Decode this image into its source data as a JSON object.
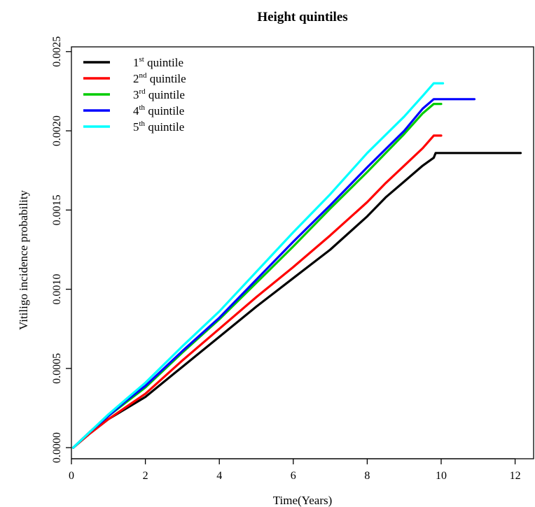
{
  "chart_data": {
    "type": "line",
    "title": "Height quintiles",
    "xlabel": "Time(Years)",
    "ylabel": "Vitiligo incidence probability",
    "xlim": [
      0,
      12.5
    ],
    "ylim": [
      -7e-05,
      0.00253
    ],
    "xticks": [
      0,
      2,
      4,
      6,
      8,
      10,
      12
    ],
    "xtick_labels": [
      "0",
      "2",
      "4",
      "6",
      "8",
      "10",
      "12"
    ],
    "yticks": [
      0.0,
      0.0005,
      0.001,
      0.0015,
      0.002,
      0.0025
    ],
    "ytick_labels": [
      "0.0000",
      "0.0005",
      "0.0010",
      "0.0015",
      "0.0020",
      "0.0025"
    ],
    "grid": false,
    "legend_position": "top-left",
    "series": [
      {
        "name_prefix": "1",
        "name_sup": "st",
        "name_suffix": " quintile",
        "color": "#000000",
        "x": [
          0.05,
          0.5,
          1,
          1.5,
          2,
          3,
          4,
          5,
          5.5,
          6,
          7,
          8,
          8.5,
          9,
          9.5,
          9.8,
          9.85,
          10,
          11,
          12.15
        ],
        "y": [
          0,
          9e-05,
          0.00018,
          0.00025,
          0.00032,
          0.00051,
          0.0007,
          0.00089,
          0.00098,
          0.00107,
          0.00125,
          0.00146,
          0.00158,
          0.00168,
          0.00178,
          0.00183,
          0.00186,
          0.00186,
          0.00186,
          0.00186
        ]
      },
      {
        "name_prefix": "2",
        "name_sup": "nd",
        "name_suffix": " quintile",
        "color": "#ff0000",
        "x": [
          0.05,
          0.5,
          1,
          1.5,
          2,
          3,
          4,
          5,
          6,
          7,
          8,
          8.5,
          9,
          9.5,
          9.8,
          10
        ],
        "y": [
          0,
          9e-05,
          0.00018,
          0.00026,
          0.00034,
          0.00055,
          0.00075,
          0.00095,
          0.00114,
          0.00134,
          0.00155,
          0.00167,
          0.00178,
          0.00189,
          0.00197,
          0.00197
        ]
      },
      {
        "name_prefix": "3",
        "name_sup": "rd",
        "name_suffix": " quintile",
        "color": "#00cc00",
        "x": [
          0.05,
          0.5,
          1,
          1.5,
          2,
          3,
          4,
          5,
          6,
          7,
          8,
          9,
          9.5,
          9.8,
          10
        ],
        "y": [
          0,
          0.0001,
          0.0002,
          0.00029,
          0.00038,
          0.0006,
          0.00081,
          0.00104,
          0.00127,
          0.00151,
          0.00174,
          0.00198,
          0.00211,
          0.00217,
          0.00217
        ]
      },
      {
        "name_prefix": "4",
        "name_sup": "th",
        "name_suffix": " quintile",
        "color": "#0000ff",
        "x": [
          0.05,
          0.5,
          1,
          1.5,
          2,
          3,
          4,
          5,
          6,
          7,
          8,
          9,
          9.5,
          9.8,
          10,
          10.9
        ],
        "y": [
          0,
          0.0001,
          0.0002,
          0.0003,
          0.00039,
          0.00061,
          0.00082,
          0.00106,
          0.0013,
          0.00153,
          0.00177,
          0.002,
          0.00214,
          0.0022,
          0.0022,
          0.0022
        ]
      },
      {
        "name_prefix": "5",
        "name_sup": "th",
        "name_suffix": " quintile",
        "color": "#00ffff",
        "x": [
          0.05,
          0.5,
          1,
          1.5,
          2,
          3,
          4,
          5,
          6,
          7,
          8,
          9,
          9.5,
          9.8,
          10.05
        ],
        "y": [
          0,
          0.0001,
          0.00021,
          0.00031,
          0.00041,
          0.00064,
          0.00086,
          0.00111,
          0.00136,
          0.0016,
          0.00186,
          0.00209,
          0.00222,
          0.0023,
          0.0023
        ]
      }
    ]
  }
}
